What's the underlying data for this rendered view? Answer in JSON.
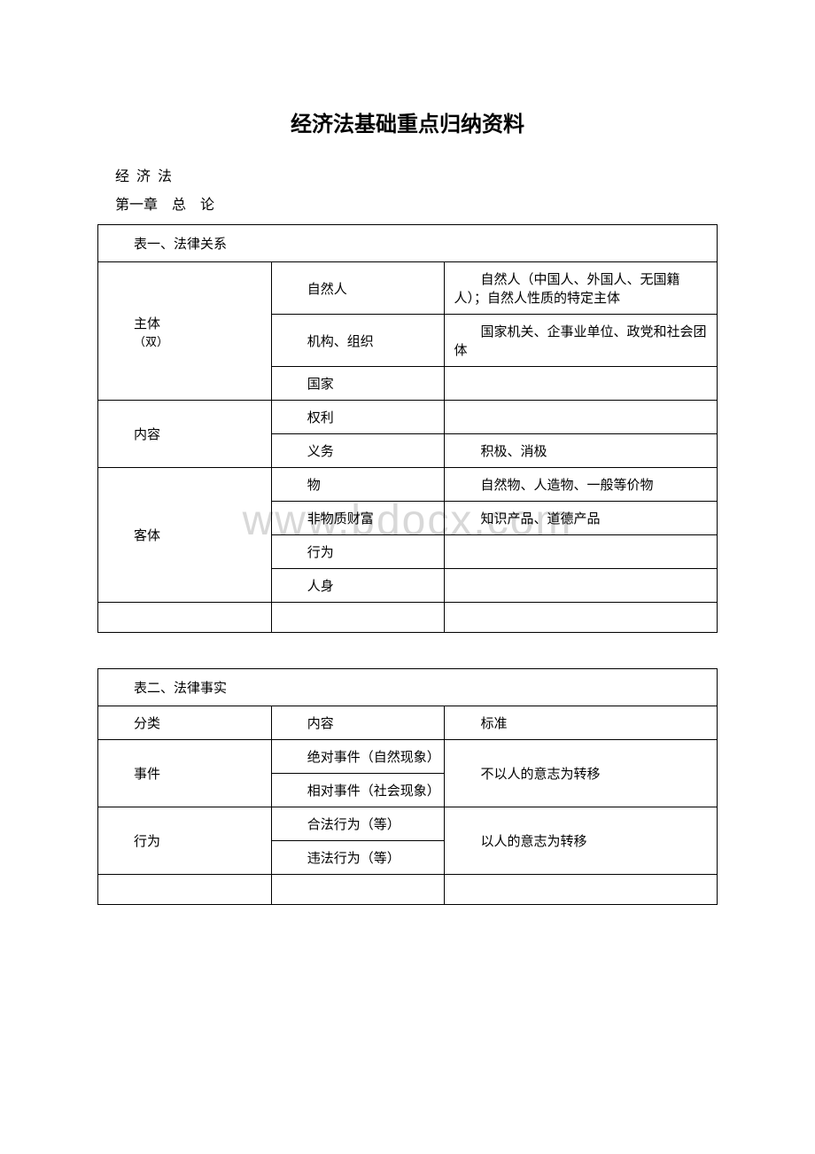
{
  "title": "经济法基础重点归纳资料",
  "subtitle": "经 济 法",
  "chapter": "第一章　总　论",
  "watermark": "www.bdocx.com",
  "table1": {
    "header": "表一、法律关系",
    "rows": [
      {
        "col1": "主体",
        "col1_sub": "（双）",
        "items": [
          {
            "col2": "自然人",
            "col3": "自然人（中国人、外国人、无国籍人）；自然人性质的特定主体"
          },
          {
            "col2": "机构、组织",
            "col3": "国家机关、企事业单位、政党和社会团体"
          },
          {
            "col2": "国家",
            "col3": ""
          }
        ]
      },
      {
        "col1": "内容",
        "items": [
          {
            "col2": "权利",
            "col3": ""
          },
          {
            "col2": "义务",
            "col3": "积极、消极"
          }
        ]
      },
      {
        "col1": "客体",
        "items": [
          {
            "col2": "物",
            "col3": "自然物、人造物、一般等价物"
          },
          {
            "col2": "非物质财富",
            "col3": "知识产品、道德产品"
          },
          {
            "col2": "行为",
            "col3": ""
          },
          {
            "col2": "人身",
            "col3": ""
          }
        ]
      }
    ]
  },
  "table2": {
    "header": "表二、法律事实",
    "cols": {
      "c1": "分类",
      "c2": "内容",
      "c3": "标准"
    },
    "rows": [
      {
        "col1": "事件",
        "items": [
          {
            "col2": "绝对事件（自然现象）"
          },
          {
            "col2": "相对事件（社会现象）"
          }
        ],
        "col3": "不以人的意志为转移"
      },
      {
        "col1": "行为",
        "items": [
          {
            "col2": "合法行为（等）"
          },
          {
            "col2": "违法行为（等）"
          }
        ],
        "col3": "以人的意志为转移"
      }
    ]
  }
}
